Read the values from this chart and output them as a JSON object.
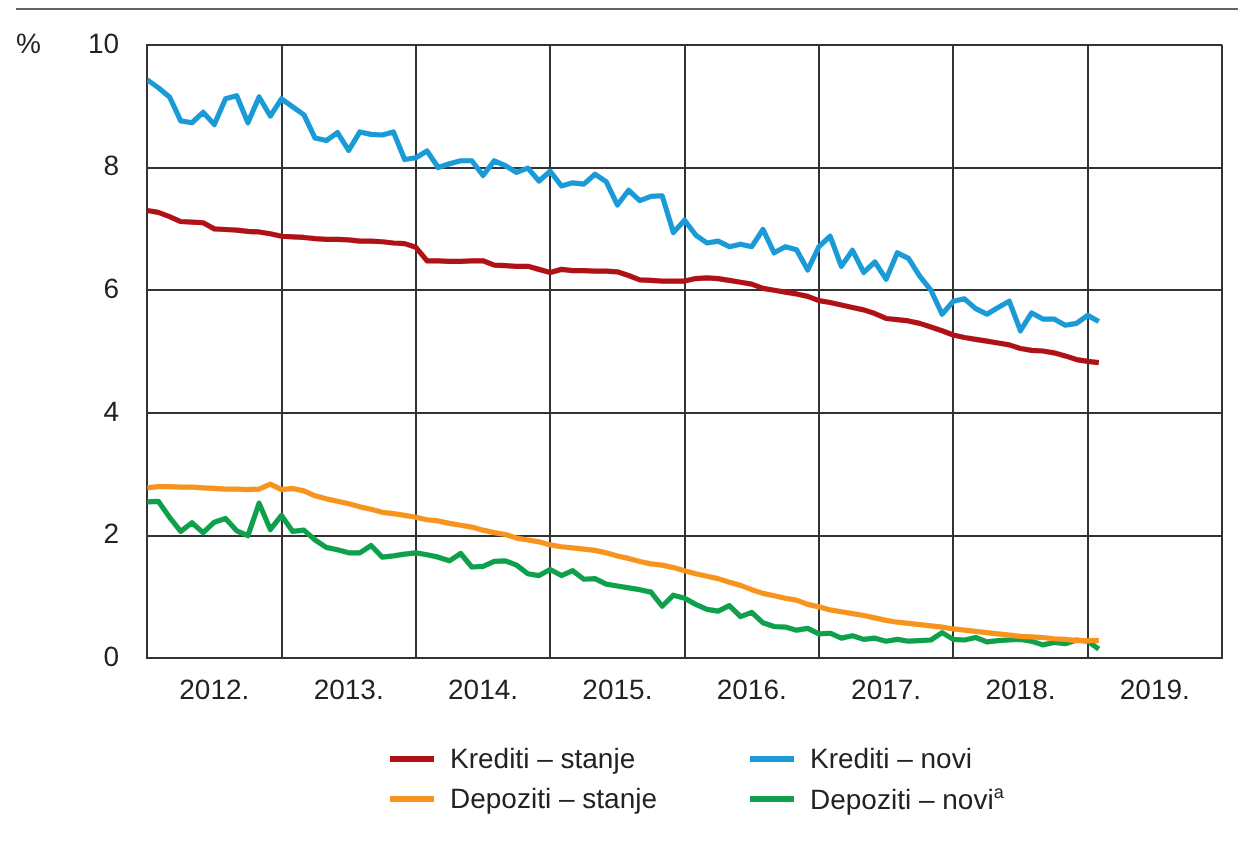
{
  "chart_data": {
    "type": "line",
    "ylabel": "%",
    "legend": "bottom",
    "grid": true,
    "marker": "none",
    "line_style": "solid",
    "x": [
      "2012-01",
      "2012-02",
      "2012-03",
      "2012-04",
      "2012-05",
      "2012-06",
      "2012-07",
      "2012-08",
      "2012-09",
      "2012-10",
      "2012-11",
      "2012-12",
      "2013-01",
      "2013-02",
      "2013-03",
      "2013-04",
      "2013-05",
      "2013-06",
      "2013-07",
      "2013-08",
      "2013-09",
      "2013-10",
      "2013-11",
      "2013-12",
      "2014-01",
      "2014-02",
      "2014-03",
      "2014-04",
      "2014-05",
      "2014-06",
      "2014-07",
      "2014-08",
      "2014-09",
      "2014-10",
      "2014-11",
      "2014-12",
      "2015-01",
      "2015-02",
      "2015-03",
      "2015-04",
      "2015-05",
      "2015-06",
      "2015-07",
      "2015-08",
      "2015-09",
      "2015-10",
      "2015-11",
      "2015-12",
      "2016-01",
      "2016-02",
      "2016-03",
      "2016-04",
      "2016-05",
      "2016-06",
      "2016-07",
      "2016-08",
      "2016-09",
      "2016-10",
      "2016-11",
      "2016-12",
      "2017-01",
      "2017-02",
      "2017-03",
      "2017-04",
      "2017-05",
      "2017-06",
      "2017-07",
      "2017-08",
      "2017-09",
      "2017-10",
      "2017-11",
      "2017-12",
      "2018-01",
      "2018-02",
      "2018-03",
      "2018-04",
      "2018-05",
      "2018-06",
      "2018-07",
      "2018-08",
      "2018-09",
      "2018-10",
      "2018-11",
      "2018-12",
      "2019-01",
      "2019-02"
    ],
    "xlim": [
      "2012-01",
      "2020-01"
    ],
    "xticks": [
      {
        "value": "2012-01",
        "label": null
      },
      {
        "value": "2012-07",
        "label": "2012."
      },
      {
        "value": "2013-01",
        "label": null
      },
      {
        "value": "2013-07",
        "label": "2013."
      },
      {
        "value": "2014-01",
        "label": null
      },
      {
        "value": "2014-07",
        "label": "2014."
      },
      {
        "value": "2015-01",
        "label": null
      },
      {
        "value": "2015-07",
        "label": "2015."
      },
      {
        "value": "2016-01",
        "label": null
      },
      {
        "value": "2016-07",
        "label": "2016."
      },
      {
        "value": "2017-01",
        "label": null
      },
      {
        "value": "2017-07",
        "label": "2017."
      },
      {
        "value": "2018-01",
        "label": null
      },
      {
        "value": "2018-07",
        "label": "2018."
      },
      {
        "value": "2019-01",
        "label": null
      },
      {
        "value": "2019-07",
        "label": "2019."
      },
      {
        "value": "2020-01",
        "label": null
      }
    ],
    "ylim": [
      0,
      10
    ],
    "yticks": [
      0,
      2,
      4,
      6,
      8,
      10
    ],
    "series": [
      {
        "name": "Krediti – stanje",
        "color": "#b01116",
        "values": [
          7.3,
          7.27,
          7.2,
          7.12,
          7.11,
          7.1,
          7.0,
          6.99,
          6.98,
          6.96,
          6.95,
          6.92,
          6.88,
          6.87,
          6.86,
          6.84,
          6.83,
          6.83,
          6.82,
          6.8,
          6.8,
          6.79,
          6.77,
          6.76,
          6.7,
          6.48,
          6.48,
          6.47,
          6.47,
          6.48,
          6.48,
          6.41,
          6.4,
          6.39,
          6.39,
          6.34,
          6.29,
          6.34,
          6.32,
          6.32,
          6.31,
          6.31,
          6.3,
          6.24,
          6.17,
          6.16,
          6.15,
          6.15,
          6.15,
          6.19,
          6.2,
          6.19,
          6.16,
          6.13,
          6.1,
          6.03,
          6.0,
          5.97,
          5.94,
          5.9,
          5.83,
          5.8,
          5.76,
          5.72,
          5.68,
          5.62,
          5.54,
          5.52,
          5.5,
          5.46,
          5.4,
          5.34,
          5.27,
          5.23,
          5.2,
          5.17,
          5.14,
          5.11,
          5.05,
          5.02,
          5.01,
          4.98,
          4.93,
          4.87,
          4.84,
          4.82
        ]
      },
      {
        "name": "Krediti – novi",
        "color": "#1a9ad6",
        "values": [
          9.43,
          9.3,
          9.15,
          8.76,
          8.73,
          8.9,
          8.7,
          9.12,
          9.17,
          8.73,
          9.15,
          8.84,
          9.12,
          8.99,
          8.86,
          8.48,
          8.44,
          8.57,
          8.28,
          8.58,
          8.54,
          8.53,
          8.58,
          8.13,
          8.16,
          8.27,
          8.0,
          8.06,
          8.11,
          8.11,
          7.87,
          8.11,
          8.03,
          7.92,
          7.99,
          7.78,
          7.94,
          7.7,
          7.75,
          7.73,
          7.89,
          7.77,
          7.39,
          7.63,
          7.46,
          7.53,
          7.54,
          6.94,
          7.14,
          6.9,
          6.77,
          6.8,
          6.71,
          6.75,
          6.71,
          6.99,
          6.61,
          6.71,
          6.66,
          6.33,
          6.71,
          6.88,
          6.39,
          6.65,
          6.29,
          6.46,
          6.18,
          6.61,
          6.52,
          6.23,
          6.0,
          5.61,
          5.82,
          5.86,
          5.7,
          5.61,
          5.72,
          5.82,
          5.34,
          5.63,
          5.53,
          5.53,
          5.43,
          5.46,
          5.59,
          5.49
        ]
      },
      {
        "name": "Depoziti – stanje",
        "color": "#f7941d",
        "values": [
          2.78,
          2.8,
          2.8,
          2.79,
          2.79,
          2.78,
          2.77,
          2.76,
          2.76,
          2.75,
          2.76,
          2.84,
          2.75,
          2.77,
          2.73,
          2.65,
          2.6,
          2.56,
          2.52,
          2.47,
          2.43,
          2.38,
          2.36,
          2.33,
          2.3,
          2.26,
          2.24,
          2.2,
          2.17,
          2.14,
          2.09,
          2.05,
          2.02,
          1.96,
          1.93,
          1.9,
          1.85,
          1.82,
          1.8,
          1.78,
          1.76,
          1.72,
          1.67,
          1.63,
          1.58,
          1.54,
          1.52,
          1.48,
          1.43,
          1.38,
          1.34,
          1.3,
          1.24,
          1.19,
          1.12,
          1.06,
          1.02,
          0.98,
          0.95,
          0.88,
          0.84,
          0.79,
          0.76,
          0.73,
          0.7,
          0.66,
          0.62,
          0.59,
          0.57,
          0.55,
          0.53,
          0.51,
          0.48,
          0.46,
          0.44,
          0.42,
          0.4,
          0.38,
          0.36,
          0.35,
          0.34,
          0.32,
          0.31,
          0.29,
          0.29,
          0.29
        ]
      },
      {
        "name": "Depoziti – novi$^{a}$",
        "color": "#0ea04b",
        "values": [
          2.55,
          2.56,
          2.3,
          2.07,
          2.21,
          2.05,
          2.22,
          2.28,
          2.08,
          2.0,
          2.53,
          2.1,
          2.33,
          2.07,
          2.09,
          1.93,
          1.81,
          1.77,
          1.72,
          1.72,
          1.84,
          1.65,
          1.67,
          1.7,
          1.72,
          1.69,
          1.65,
          1.59,
          1.71,
          1.49,
          1.5,
          1.58,
          1.59,
          1.52,
          1.38,
          1.35,
          1.45,
          1.35,
          1.43,
          1.29,
          1.3,
          1.21,
          1.18,
          1.15,
          1.12,
          1.08,
          0.85,
          1.03,
          0.98,
          0.88,
          0.8,
          0.77,
          0.86,
          0.68,
          0.75,
          0.58,
          0.52,
          0.51,
          0.46,
          0.49,
          0.4,
          0.41,
          0.33,
          0.37,
          0.31,
          0.33,
          0.28,
          0.31,
          0.28,
          0.29,
          0.3,
          0.42,
          0.31,
          0.3,
          0.34,
          0.27,
          0.29,
          0.3,
          0.31,
          0.28,
          0.22,
          0.26,
          0.24,
          0.3,
          0.28,
          0.15
        ]
      }
    ]
  }
}
